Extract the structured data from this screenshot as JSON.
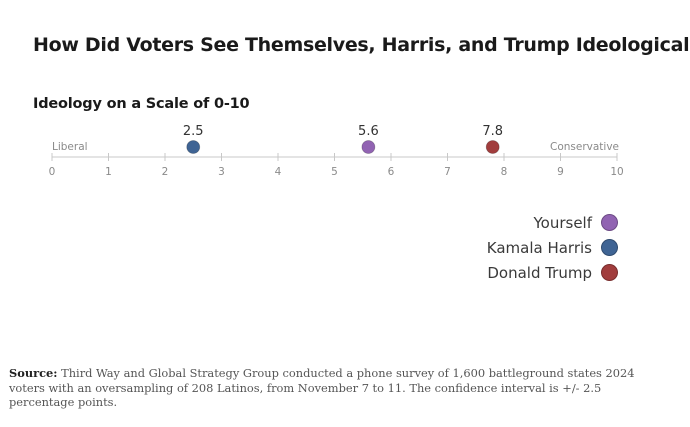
{
  "title": "How Did Voters See Themselves, Harris, and Trump Ideologically?",
  "subtitle": "Ideology on a Scale of 0-10",
  "chart_data": {
    "type": "scatter",
    "title": "How Did Voters See Themselves, Harris, and Trump Ideologically?",
    "subtitle": "Ideology on a Scale of 0-10",
    "xlim": [
      0,
      10
    ],
    "ticks": [
      "0",
      "1",
      "2",
      "3",
      "4",
      "5",
      "6",
      "7",
      "8",
      "9",
      "10"
    ],
    "left_label": "Liberal",
    "right_label": "Conservative",
    "series": [
      {
        "name": "Kamala Harris",
        "value": 2.5,
        "label": "2.5",
        "color": "#3f6494"
      },
      {
        "name": "Yourself",
        "value": 5.6,
        "label": "5.6",
        "color": "#9163b2"
      },
      {
        "name": "Donald Trump",
        "value": 7.8,
        "label": "7.8",
        "color": "#a13d3d"
      }
    ]
  },
  "legend": [
    {
      "label": "Yourself",
      "color": "#9163b2"
    },
    {
      "label": "Kamala Harris",
      "color": "#3f6494"
    },
    {
      "label": "Donald Trump",
      "color": "#a13d3d"
    }
  ],
  "source": {
    "label": "Source:",
    "text": " Third Way and Global Strategy Group conducted a phone survey of 1,600 battleground states 2024 voters with an oversampling of 208 Latinos, from November 7 to 11. The confidence interval is +/- 2.5 percentage points."
  }
}
